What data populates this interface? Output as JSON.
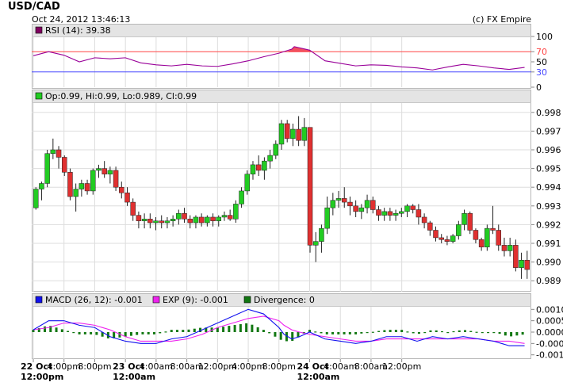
{
  "header": {
    "title": "USD/CAD",
    "timestamp": "Oct 24, 2012 13:46:13",
    "copyright": "(c) FX Empire"
  },
  "colors": {
    "up_candle": "#22cc22",
    "down_candle": "#e03030",
    "rsi_line": "#990099",
    "rsi_70": "#ff4444",
    "rsi_30": "#4444ff",
    "macd_line": "#1111ee",
    "exp_line": "#ee22ee",
    "divergence": "#117711",
    "panel_header_bg": "#e4e4e4",
    "grid": "#dddddd"
  },
  "chart_data": [
    {
      "type": "line",
      "panel": "rsi",
      "legend": "RSI (14): 39.38",
      "legend_color": "#800060",
      "ylim": [
        0,
        100
      ],
      "y_ticks": [
        "100",
        "70",
        "50",
        "30",
        "0"
      ],
      "levels": [
        70,
        30
      ],
      "x": [
        0,
        6,
        12,
        18,
        24,
        30,
        36,
        42,
        48,
        54,
        60,
        66,
        72,
        78,
        84,
        90,
        96,
        101,
        102,
        108,
        114,
        120,
        126,
        132,
        138,
        144,
        150,
        156,
        162,
        168,
        174,
        180,
        186,
        192
      ],
      "series": [
        {
          "values": [
            62,
            70,
            63,
            50,
            58,
            56,
            58,
            48,
            44,
            42,
            45,
            42,
            41,
            46,
            52,
            60,
            67,
            75,
            80,
            73,
            52,
            47,
            42,
            44,
            43,
            40,
            38,
            34,
            40,
            45,
            42,
            38,
            35,
            39
          ]
        }
      ]
    },
    {
      "type": "candlestick",
      "panel": "price",
      "legend": "Op:0.99, Hi:0.99, Lo:0.989, Cl:0.99",
      "legend_color": "#22cc22",
      "ylim": [
        0.9885,
        0.9985
      ],
      "y_ticks": [
        "0.998",
        "0.997",
        "0.996",
        "0.995",
        "0.994",
        "0.993",
        "0.992",
        "0.991",
        "0.990",
        "0.989"
      ],
      "candles": [
        [
          0.9929,
          0.994,
          0.9928,
          0.9939
        ],
        [
          0.9939,
          0.9943,
          0.9933,
          0.9942
        ],
        [
          0.9942,
          0.996,
          0.994,
          0.9958
        ],
        [
          0.9958,
          0.9966,
          0.9955,
          0.996
        ],
        [
          0.996,
          0.9962,
          0.995,
          0.9956
        ],
        [
          0.9956,
          0.9957,
          0.9946,
          0.9948
        ],
        [
          0.9948,
          0.995,
          0.9933,
          0.9935
        ],
        [
          0.9935,
          0.9942,
          0.9927,
          0.9939
        ],
        [
          0.9939,
          0.9944,
          0.9935,
          0.9942
        ],
        [
          0.9942,
          0.9944,
          0.9936,
          0.9938
        ],
        [
          0.9938,
          0.995,
          0.9936,
          0.9949
        ],
        [
          0.9949,
          0.9952,
          0.9945,
          0.995
        ],
        [
          0.995,
          0.9954,
          0.9945,
          0.9947
        ],
        [
          0.9947,
          0.9951,
          0.9942,
          0.9949
        ],
        [
          0.9949,
          0.9951,
          0.9938,
          0.994
        ],
        [
          0.994,
          0.9943,
          0.9934,
          0.9937
        ],
        [
          0.9937,
          0.994,
          0.993,
          0.9932
        ],
        [
          0.9932,
          0.9934,
          0.9922,
          0.9925
        ],
        [
          0.9925,
          0.9927,
          0.9918,
          0.9922
        ],
        [
          0.9922,
          0.9926,
          0.9918,
          0.9923
        ],
        [
          0.9923,
          0.9926,
          0.9918,
          0.9921
        ],
        [
          0.9921,
          0.9924,
          0.9917,
          0.9922
        ],
        [
          0.9922,
          0.9925,
          0.9918,
          0.9921
        ],
        [
          0.9921,
          0.9924,
          0.9918,
          0.9922
        ],
        [
          0.9922,
          0.9925,
          0.9919,
          0.9923
        ],
        [
          0.9923,
          0.9928,
          0.992,
          0.9926
        ],
        [
          0.9926,
          0.9929,
          0.9921,
          0.9923
        ],
        [
          0.9923,
          0.9925,
          0.9918,
          0.9921
        ],
        [
          0.9921,
          0.9925,
          0.9918,
          0.9924
        ],
        [
          0.9924,
          0.9926,
          0.9919,
          0.9921
        ],
        [
          0.9921,
          0.9925,
          0.9919,
          0.9924
        ],
        [
          0.9924,
          0.9926,
          0.9919,
          0.9922
        ],
        [
          0.9922,
          0.9925,
          0.9919,
          0.9924
        ],
        [
          0.9924,
          0.9927,
          0.9922,
          0.9925
        ],
        [
          0.9925,
          0.9928,
          0.9922,
          0.9923
        ],
        [
          0.9923,
          0.9933,
          0.9921,
          0.9931
        ],
        [
          0.9931,
          0.994,
          0.9929,
          0.9938
        ],
        [
          0.9938,
          0.9949,
          0.9936,
          0.9947
        ],
        [
          0.9947,
          0.9954,
          0.9944,
          0.9952
        ],
        [
          0.9952,
          0.9957,
          0.9946,
          0.9949
        ],
        [
          0.9949,
          0.9956,
          0.9944,
          0.9954
        ],
        [
          0.9954,
          0.996,
          0.995,
          0.9957
        ],
        [
          0.9957,
          0.9965,
          0.9955,
          0.9963
        ],
        [
          0.9963,
          0.9976,
          0.996,
          0.9974
        ],
        [
          0.9974,
          0.9976,
          0.9964,
          0.9966
        ],
        [
          0.9966,
          0.9974,
          0.9962,
          0.9971
        ],
        [
          0.9971,
          0.9978,
          0.9962,
          0.9965
        ],
        [
          0.9965,
          0.9977,
          0.9962,
          0.9972
        ],
        [
          0.9972,
          0.9972,
          0.9905,
          0.9909
        ],
        [
          0.9909,
          0.9916,
          0.99,
          0.9911
        ],
        [
          0.9911,
          0.992,
          0.9905,
          0.9918
        ],
        [
          0.9918,
          0.9935,
          0.9915,
          0.9929
        ],
        [
          0.9929,
          0.9937,
          0.9925,
          0.9933
        ],
        [
          0.9933,
          0.9938,
          0.9929,
          0.9934
        ],
        [
          0.9934,
          0.994,
          0.9929,
          0.9932
        ],
        [
          0.9932,
          0.9935,
          0.9925,
          0.993
        ],
        [
          0.993,
          0.9933,
          0.9924,
          0.9927
        ],
        [
          0.9927,
          0.9931,
          0.9923,
          0.9929
        ],
        [
          0.9929,
          0.9936,
          0.9926,
          0.9933
        ],
        [
          0.9933,
          0.9935,
          0.9926,
          0.9928
        ],
        [
          0.9928,
          0.993,
          0.9922,
          0.9925
        ],
        [
          0.9925,
          0.9929,
          0.9922,
          0.9927
        ],
        [
          0.9927,
          0.9929,
          0.9922,
          0.9925
        ],
        [
          0.9925,
          0.9928,
          0.9922,
          0.9926
        ],
        [
          0.9926,
          0.9929,
          0.9924,
          0.9927
        ],
        [
          0.9927,
          0.9931,
          0.9924,
          0.993
        ],
        [
          0.993,
          0.9931,
          0.9926,
          0.9928
        ],
        [
          0.9928,
          0.9931,
          0.992,
          0.9924
        ],
        [
          0.9924,
          0.9926,
          0.9918,
          0.9921
        ],
        [
          0.9921,
          0.9922,
          0.9914,
          0.9917
        ],
        [
          0.9917,
          0.9919,
          0.9911,
          0.9913
        ],
        [
          0.9913,
          0.9915,
          0.991,
          0.9912
        ],
        [
          0.9912,
          0.9914,
          0.9909,
          0.9911
        ],
        [
          0.9911,
          0.9915,
          0.991,
          0.9914
        ],
        [
          0.9914,
          0.9922,
          0.9912,
          0.992
        ],
        [
          0.992,
          0.9928,
          0.9917,
          0.9926
        ],
        [
          0.9926,
          0.9927,
          0.9915,
          0.9917
        ],
        [
          0.9917,
          0.9918,
          0.991,
          0.9912
        ],
        [
          0.9912,
          0.9913,
          0.9906,
          0.9908
        ],
        [
          0.9908,
          0.992,
          0.9906,
          0.9918
        ],
        [
          0.9918,
          0.993,
          0.9915,
          0.9917
        ],
        [
          0.9917,
          0.992,
          0.9906,
          0.9909
        ],
        [
          0.9909,
          0.9913,
          0.9903,
          0.9906
        ],
        [
          0.9906,
          0.9913,
          0.9903,
          0.9909
        ],
        [
          0.9909,
          0.9912,
          0.9895,
          0.9897
        ],
        [
          0.9897,
          0.9905,
          0.9891,
          0.9901
        ],
        [
          0.9901,
          0.9906,
          0.9891,
          0.9896
        ]
      ]
    },
    {
      "type": "bar+line",
      "panel": "macd",
      "legend": [
        {
          "text": "MACD (26, 12): -0.001",
          "color": "#1111ee"
        },
        {
          "text": "EXP (9): -0.001",
          "color": "#ee22ee"
        },
        {
          "text": "Divergence: 0",
          "color": "#117711"
        }
      ],
      "ylim": [
        -0.00115,
        0.00115
      ],
      "y_ticks": [
        {
          "value": 0.001,
          "label": "0.0010"
        },
        {
          "value": 0.0005,
          "label": "0.0005"
        },
        {
          "value": 0.0,
          "label": "0.0000"
        },
        {
          "value": -0.0005,
          "label": "-0.0005"
        },
        {
          "value": -0.001,
          "label": "-0.0010"
        }
      ],
      "x": [
        0,
        6,
        12,
        18,
        24,
        30,
        36,
        42,
        48,
        54,
        60,
        66,
        72,
        78,
        84,
        90,
        96,
        98,
        101,
        104,
        108,
        114,
        120,
        126,
        132,
        138,
        144,
        150,
        156,
        162,
        168,
        174,
        180,
        186,
        192
      ],
      "series": [
        {
          "name": "MACD",
          "values": [
            0.0001,
            0.0005,
            0.0005,
            0.0003,
            0.0002,
            -0.0002,
            -0.0004,
            -0.0005,
            -0.0005,
            -0.0003,
            -0.0002,
            0.0001,
            0.0004,
            0.0007,
            0.001,
            0.0008,
            0.0002,
            -0.0001,
            -0.0003,
            -0.0002,
            0.0,
            -0.0003,
            -0.0004,
            -0.0005,
            -0.0004,
            -0.0002,
            -0.0002,
            -0.0004,
            -0.0002,
            -0.0003,
            -0.0002,
            -0.0003,
            -0.0004,
            -0.0006,
            -0.0006
          ]
        },
        {
          "name": "EXP",
          "values": [
            0.0001,
            0.0002,
            0.0004,
            0.0004,
            0.0003,
            0.0001,
            -0.0002,
            -0.0004,
            -0.0004,
            -0.0004,
            -0.0003,
            -0.0001,
            0.0002,
            0.0004,
            0.0006,
            0.0007,
            0.0005,
            0.0003,
            0.0001,
            0.0,
            -0.0001,
            -0.0002,
            -0.0003,
            -0.0004,
            -0.0004,
            -0.0003,
            -0.0003,
            -0.0003,
            -0.0003,
            -0.0003,
            -0.0003,
            -0.0003,
            -0.0004,
            -0.0004,
            -0.0005
          ]
        },
        {
          "name": "Divergence",
          "values": [
            0.0001,
            0.0003,
            0.0001,
            -0.0001,
            -0.0001,
            -0.0003,
            -0.0002,
            -0.0001,
            -0.0001,
            0.0001,
            0.0001,
            0.0002,
            0.0002,
            0.0003,
            0.0004,
            0.0001,
            -0.0003,
            -0.0004,
            -0.0004,
            -0.0002,
            0.0001,
            -0.0001,
            -0.0001,
            -0.0001,
            0.0,
            0.0001,
            0.0001,
            -0.0001,
            0.0001,
            0.0,
            0.0001,
            0.0,
            0.0,
            -0.0002,
            -0.0001
          ]
        }
      ]
    }
  ],
  "x_axis": {
    "range": [
      0,
      194
    ],
    "ticks": [
      {
        "t": 0,
        "label": "22 Oct",
        "sublabel": "12:00pm",
        "bold": true
      },
      {
        "t": 12,
        "label": "4:00pm",
        "sublabel": "",
        "bold": false
      },
      {
        "t": 24,
        "label": "8:00pm",
        "sublabel": "",
        "bold": false
      },
      {
        "t": 36,
        "label": "23 Oct",
        "sublabel": "12:00am",
        "bold": true
      },
      {
        "t": 48,
        "label": "4:00am",
        "sublabel": "",
        "bold": false
      },
      {
        "t": 60,
        "label": "8:00am",
        "sublabel": "",
        "bold": false
      },
      {
        "t": 72,
        "label": "12:00pm",
        "sublabel": "",
        "bold": false
      },
      {
        "t": 84,
        "label": "4:00pm",
        "sublabel": "",
        "bold": false
      },
      {
        "t": 96,
        "label": "8:00pm",
        "sublabel": "",
        "bold": false
      },
      {
        "t": 108,
        "label": "24 Oct",
        "sublabel": "12:00am",
        "bold": true
      },
      {
        "t": 120,
        "label": "4:00am",
        "sublabel": "",
        "bold": false
      },
      {
        "t": 132,
        "label": "8:00am",
        "sublabel": "",
        "bold": false
      },
      {
        "t": 144,
        "label": "12:00pm",
        "sublabel": "",
        "bold": false
      }
    ]
  }
}
